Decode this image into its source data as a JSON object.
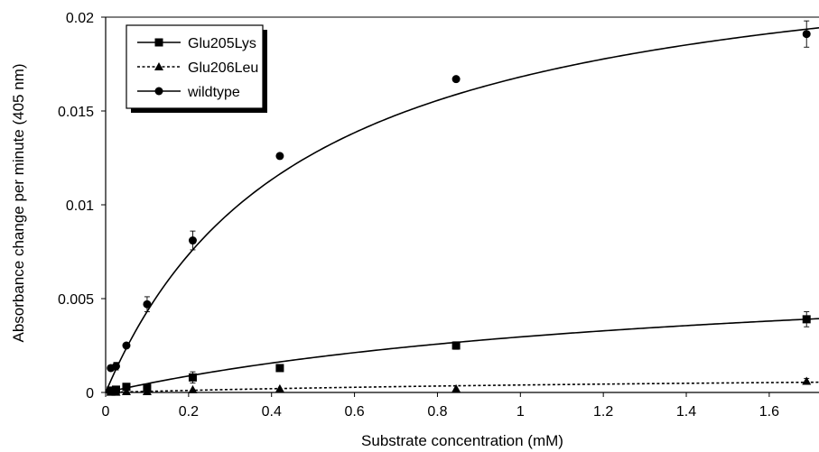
{
  "chart_data": {
    "type": "scatter",
    "xlabel": "Substrate concentration (mM)",
    "ylabel": "Absorbance change per minute (405 nm)",
    "xlim": [
      0,
      1.72
    ],
    "ylim": [
      0,
      0.02
    ],
    "x_ticks": [
      0,
      0.2,
      0.4,
      0.6,
      0.8,
      1,
      1.2,
      1.4,
      1.6
    ],
    "x_tick_labels": [
      "0",
      "0.2",
      "0.4",
      "0.6",
      "0.8",
      "1",
      "1.2",
      "1.4",
      "1.6"
    ],
    "y_ticks": [
      0,
      0.005,
      0.01,
      0.015,
      0.02
    ],
    "y_tick_labels": [
      "0",
      "0.005",
      "0.01",
      "0.015",
      "0.02"
    ],
    "grid": false,
    "legend_position": "top-left",
    "series": [
      {
        "name": "Glu205Lys",
        "marker": "square",
        "line_style": "solid",
        "x": [
          0.0125,
          0.025,
          0.05,
          0.1,
          0.21,
          0.42,
          0.845,
          1.69
        ],
        "y": [
          0.0001,
          0.00015,
          0.0003,
          0.00025,
          0.0008,
          0.0013,
          0.0025,
          0.0039
        ],
        "error": [
          0.0001,
          0.0001,
          0.0001,
          0.0001,
          0.0003,
          0.0001,
          0.0002,
          0.0004
        ],
        "fit": {
          "vmax": 0.00725,
          "km": 1.45
        }
      },
      {
        "name": "Glu206Leu",
        "marker": "triangle",
        "line_style": "dashed",
        "x": [
          0.0125,
          0.025,
          0.05,
          0.1,
          0.21,
          0.42,
          0.845,
          1.69
        ],
        "y": [
          2e-05,
          2e-05,
          5e-05,
          5e-05,
          0.00015,
          0.0002,
          0.0002,
          0.0006
        ],
        "error": [
          0,
          0,
          0,
          0,
          0,
          0,
          0,
          0.00015
        ],
        "fit": {
          "vmax": 0.00115,
          "km": 1.9
        }
      },
      {
        "name": "wildtype",
        "marker": "circle",
        "line_style": "solid",
        "x": [
          0.0125,
          0.025,
          0.05,
          0.1,
          0.21,
          0.42,
          0.845,
          1.69
        ],
        "y": [
          0.0013,
          0.0014,
          0.0025,
          0.0047,
          0.0081,
          0.0126,
          0.0167,
          0.0191
        ],
        "error": [
          0.0001,
          0.0002,
          0.0001,
          0.0004,
          0.0005,
          0.0001,
          0.0001,
          0.0007
        ],
        "fit": {
          "vmax": 0.0248,
          "km": 0.475
        }
      }
    ]
  }
}
